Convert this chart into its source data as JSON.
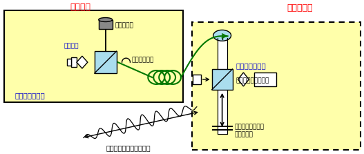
{
  "fig_width": 5.27,
  "fig_height": 2.23,
  "bg_color": "#ffffff",
  "yellow_fill": "#ffffaa",
  "title_user": "ユーザー",
  "title_std": "標準研究等",
  "title_color": "#ff0000",
  "label_interferometer2": "二番目の干渉計",
  "label_interferometer1": "一番目の干渉計",
  "label_detector": "光検出器",
  "label_object": "被測定器物",
  "label_fiber": "光ファイバー",
  "label_path_diff": "一番目の干渉計の光路差",
  "label_low_coh": "低コヒーレンス光源",
  "label_stage": "精密移動ステージ\nによる走査",
  "label_color": "#0000cc",
  "black": "#000000",
  "green_dark": "#007700",
  "light_blue": "#aaddee",
  "gray": "#888888"
}
